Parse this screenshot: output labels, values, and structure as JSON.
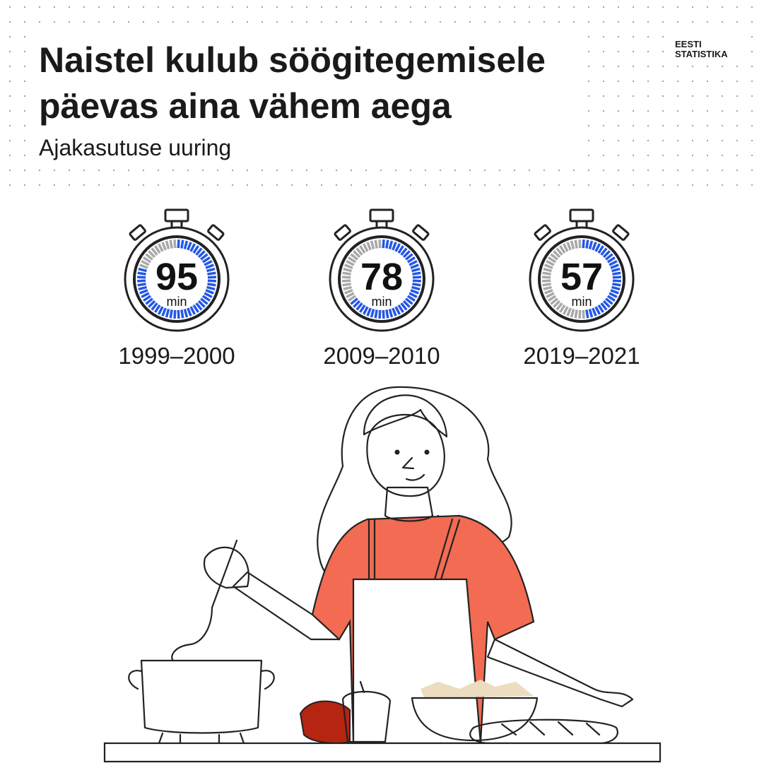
{
  "logo": [
    "EESTI",
    "STATISTIKA"
  ],
  "chart_data": {
    "type": "gauge",
    "title": [
      "Naistel kulub söögitegemisele",
      "päevas aina vähem aega"
    ],
    "subtitle": "Ajakasutuse uuring",
    "categories": [
      "1999–2000",
      "2009–2010",
      "2019–2021"
    ],
    "values": [
      95,
      78,
      57
    ],
    "value_unit": "min",
    "ylim": [
      0,
      120
    ],
    "color": "#2457e6",
    "rest_color": "#a8a8a8"
  }
}
